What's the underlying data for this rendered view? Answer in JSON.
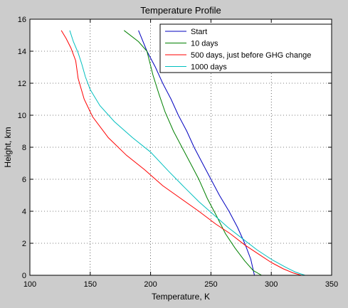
{
  "chart_data": {
    "type": "line",
    "title": "Temperature Profile",
    "xlabel": "Temperature, K",
    "ylabel": "Height, km",
    "xlim": [
      100,
      350
    ],
    "ylim": [
      0,
      16
    ],
    "xticks": [
      100,
      150,
      200,
      250,
      300,
      350
    ],
    "yticks": [
      0,
      2,
      4,
      6,
      8,
      10,
      12,
      14,
      16
    ],
    "xtick_labels": [
      "100",
      "150",
      "200",
      "250",
      "300",
      "350"
    ],
    "ytick_labels": [
      "0",
      "2",
      "4",
      "6",
      "8",
      "10",
      "12",
      "14",
      "16"
    ],
    "grid": true,
    "legend_position": "top-right",
    "series": [
      {
        "name": "Start",
        "color": "#0000bf",
        "points": [
          [
            286,
            0
          ],
          [
            283,
            1
          ],
          [
            278,
            2
          ],
          [
            272,
            3
          ],
          [
            265,
            4
          ],
          [
            257,
            5
          ],
          [
            250,
            6
          ],
          [
            243,
            7
          ],
          [
            236,
            8
          ],
          [
            230,
            9
          ],
          [
            223,
            10
          ],
          [
            217,
            11
          ],
          [
            210,
            12
          ],
          [
            204,
            13
          ],
          [
            197,
            14
          ],
          [
            190,
            15.3
          ]
        ]
      },
      {
        "name": "10 days",
        "color": "#008000",
        "points": [
          [
            292,
            0
          ],
          [
            285,
            0.3
          ],
          [
            278,
            0.9
          ],
          [
            270,
            1.7
          ],
          [
            262,
            2.6
          ],
          [
            254,
            3.8
          ],
          [
            247,
            4.8
          ],
          [
            240,
            6
          ],
          [
            233,
            7
          ],
          [
            226,
            8
          ],
          [
            219,
            9
          ],
          [
            212,
            10.2
          ],
          [
            207,
            11.3
          ],
          [
            202,
            12.5
          ],
          [
            197,
            14
          ],
          [
            190,
            14.6
          ],
          [
            178,
            15.3
          ]
        ]
      },
      {
        "name": "500 days, just before GHG change",
        "color": "#ff0000",
        "points": [
          [
            325,
            0
          ],
          [
            318,
            0.15
          ],
          [
            310,
            0.4
          ],
          [
            300,
            0.8
          ],
          [
            290,
            1.3
          ],
          [
            278,
            1.9
          ],
          [
            266,
            2.6
          ],
          [
            254,
            3.2
          ],
          [
            240,
            4
          ],
          [
            225,
            4.8
          ],
          [
            210,
            5.6
          ],
          [
            195,
            6.6
          ],
          [
            180,
            7.5
          ],
          [
            165,
            8.6
          ],
          [
            152,
            9.9
          ],
          [
            145,
            11
          ],
          [
            140,
            12.3
          ],
          [
            138,
            13.4
          ],
          [
            134,
            14.2
          ],
          [
            130,
            14.8
          ],
          [
            126,
            15.3
          ]
        ]
      },
      {
        "name": "1000 days",
        "color": "#00bfbf",
        "points": [
          [
            328,
            0
          ],
          [
            320,
            0.2
          ],
          [
            312,
            0.5
          ],
          [
            300,
            1
          ],
          [
            288,
            1.6
          ],
          [
            276,
            2.3
          ],
          [
            264,
            3
          ],
          [
            252,
            3.8
          ],
          [
            240,
            4.6
          ],
          [
            228,
            5.5
          ],
          [
            215,
            6.5
          ],
          [
            200,
            7.7
          ],
          [
            185,
            8.6
          ],
          [
            170,
            9.6
          ],
          [
            158,
            10.6
          ],
          [
            150,
            11.6
          ],
          [
            146,
            12.4
          ],
          [
            143,
            13.2
          ],
          [
            140,
            13.9
          ],
          [
            136,
            14.6
          ],
          [
            133,
            15.3
          ]
        ]
      }
    ]
  }
}
